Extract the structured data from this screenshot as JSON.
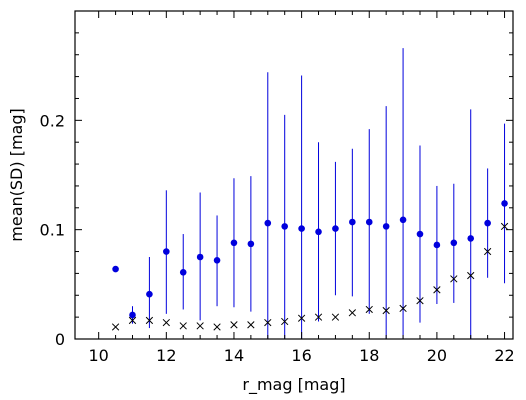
{
  "chart_data": {
    "type": "scatter",
    "xlabel": "r_mag [mag]",
    "ylabel": "mean(SD) [mag]",
    "xlim": [
      9.3,
      22.25
    ],
    "ylim": [
      0,
      0.3
    ],
    "xticks": [
      10,
      12,
      14,
      16,
      18,
      20,
      22
    ],
    "xtick_labels": [
      "10",
      "12",
      "14",
      "16",
      "18",
      "20",
      "22"
    ],
    "yticks": [
      0,
      0.1,
      0.2
    ],
    "ytick_labels": [
      "0",
      "0.1",
      "0.2"
    ],
    "grid": false,
    "series": [
      {
        "marker": "circle",
        "color": "#0000dd",
        "points": [
          {
            "x": 10.5,
            "y": 0.064,
            "err_low": null,
            "err_high": null
          },
          {
            "x": 11.0,
            "y": 0.022,
            "err_low": 0.014,
            "err_high": 0.03
          },
          {
            "x": 11.5,
            "y": 0.041,
            "err_low": 0.01,
            "err_high": 0.075
          },
          {
            "x": 12.0,
            "y": 0.08,
            "err_low": 0.023,
            "err_high": 0.136
          },
          {
            "x": 12.5,
            "y": 0.061,
            "err_low": 0.027,
            "err_high": 0.096
          },
          {
            "x": 13.0,
            "y": 0.075,
            "err_low": 0.017,
            "err_high": 0.134
          },
          {
            "x": 13.5,
            "y": 0.072,
            "err_low": 0.03,
            "err_high": 0.113
          },
          {
            "x": 14.0,
            "y": 0.088,
            "err_low": 0.029,
            "err_high": 0.147
          },
          {
            "x": 14.5,
            "y": 0.087,
            "err_low": 0.025,
            "err_high": 0.149
          },
          {
            "x": 15.0,
            "y": 0.106,
            "err_low": 0.0,
            "err_high": 0.244
          },
          {
            "x": 15.5,
            "y": 0.103,
            "err_low": 0.0,
            "err_high": 0.205
          },
          {
            "x": 16.0,
            "y": 0.101,
            "err_low": 0.0,
            "err_high": 0.241
          },
          {
            "x": 16.5,
            "y": 0.098,
            "err_low": 0.016,
            "err_high": 0.18
          },
          {
            "x": 17.0,
            "y": 0.101,
            "err_low": 0.04,
            "err_high": 0.162
          },
          {
            "x": 17.5,
            "y": 0.107,
            "err_low": 0.039,
            "err_high": 0.174
          },
          {
            "x": 18.0,
            "y": 0.107,
            "err_low": 0.023,
            "err_high": 0.192
          },
          {
            "x": 18.5,
            "y": 0.103,
            "err_low": 0.0,
            "err_high": 0.213
          },
          {
            "x": 19.0,
            "y": 0.109,
            "err_low": 0.0,
            "err_high": 0.266
          },
          {
            "x": 19.5,
            "y": 0.096,
            "err_low": 0.015,
            "err_high": 0.177
          },
          {
            "x": 20.0,
            "y": 0.086,
            "err_low": 0.032,
            "err_high": 0.14
          },
          {
            "x": 20.5,
            "y": 0.088,
            "err_low": 0.033,
            "err_high": 0.142
          },
          {
            "x": 21.0,
            "y": 0.092,
            "err_low": 0.0,
            "err_high": 0.21
          },
          {
            "x": 21.5,
            "y": 0.106,
            "err_low": 0.056,
            "err_high": 0.156
          },
          {
            "x": 22.0,
            "y": 0.124,
            "err_low": 0.051,
            "err_high": 0.197
          }
        ]
      },
      {
        "marker": "cross",
        "color": "#000000",
        "points": [
          {
            "x": 10.5,
            "y": 0.011
          },
          {
            "x": 11.0,
            "y": 0.017
          },
          {
            "x": 11.5,
            "y": 0.017
          },
          {
            "x": 12.0,
            "y": 0.015
          },
          {
            "x": 12.5,
            "y": 0.012
          },
          {
            "x": 13.0,
            "y": 0.012
          },
          {
            "x": 13.5,
            "y": 0.011
          },
          {
            "x": 14.0,
            "y": 0.013
          },
          {
            "x": 14.5,
            "y": 0.013
          },
          {
            "x": 15.0,
            "y": 0.015
          },
          {
            "x": 15.5,
            "y": 0.016
          },
          {
            "x": 16.0,
            "y": 0.019
          },
          {
            "x": 16.5,
            "y": 0.02
          },
          {
            "x": 17.0,
            "y": 0.02
          },
          {
            "x": 17.5,
            "y": 0.024
          },
          {
            "x": 18.0,
            "y": 0.027
          },
          {
            "x": 18.5,
            "y": 0.026
          },
          {
            "x": 19.0,
            "y": 0.028
          },
          {
            "x": 19.5,
            "y": 0.035
          },
          {
            "x": 20.0,
            "y": 0.045
          },
          {
            "x": 20.5,
            "y": 0.055
          },
          {
            "x": 21.0,
            "y": 0.058
          },
          {
            "x": 21.5,
            "y": 0.08
          },
          {
            "x": 22.0,
            "y": 0.103
          }
        ]
      }
    ]
  }
}
